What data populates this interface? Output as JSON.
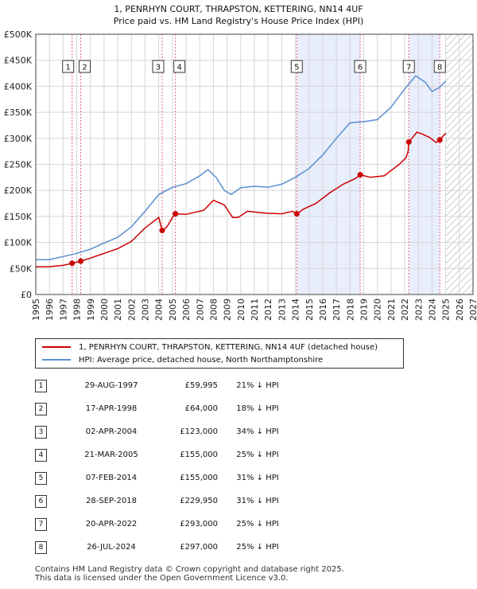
{
  "title_line1": "1, PENRHYN COURT, THRAPSTON, KETTERING, NN14 4UF",
  "title_line2": "Price paid vs. HM Land Registry's House Price Index (HPI)",
  "legend": {
    "property": "1, PENRHYN COURT, THRAPSTON, KETTERING, NN14 4UF (detached house)",
    "hpi": "HPI: Average price, detached house, North Northamptonshire"
  },
  "colors": {
    "property": "#cc0000",
    "hpi": "#5a8fd0",
    "shade": "#e8eefb",
    "grid": "#d5d5d5"
  },
  "sales": [
    {
      "num": "1",
      "date": "29-AUG-1997",
      "price": "£59,995",
      "delta": "21% ↓ HPI"
    },
    {
      "num": "2",
      "date": "17-APR-1998",
      "price": "£64,000",
      "delta": "18% ↓ HPI"
    },
    {
      "num": "3",
      "date": "02-APR-2004",
      "price": "£123,000",
      "delta": "34% ↓ HPI"
    },
    {
      "num": "4",
      "date": "21-MAR-2005",
      "price": "£155,000",
      "delta": "25% ↓ HPI"
    },
    {
      "num": "5",
      "date": "07-FEB-2014",
      "price": "£155,000",
      "delta": "31% ↓ HPI"
    },
    {
      "num": "6",
      "date": "28-SEP-2018",
      "price": "£229,950",
      "delta": "31% ↓ HPI"
    },
    {
      "num": "7",
      "date": "20-APR-2022",
      "price": "£293,000",
      "delta": "25% ↓ HPI"
    },
    {
      "num": "8",
      "date": "26-JUL-2024",
      "price": "£297,000",
      "delta": "25% ↓ HPI"
    }
  ],
  "footer_line1": "Contains HM Land Registry data © Crown copyright and database right 2025.",
  "footer_line2": "This data is licensed under the Open Government Licence v3.0.",
  "chart_data": {
    "type": "line",
    "xlim": [
      1995,
      2027
    ],
    "ylim": [
      0,
      500000
    ],
    "xticks": [
      1995,
      1996,
      1997,
      1998,
      1999,
      2000,
      2001,
      2002,
      2003,
      2004,
      2005,
      2006,
      2007,
      2008,
      2009,
      2010,
      2011,
      2012,
      2013,
      2014,
      2015,
      2016,
      2017,
      2018,
      2019,
      2020,
      2021,
      2022,
      2023,
      2024,
      2025,
      2026,
      2027
    ],
    "yticks": [
      {
        "v": 0,
        "label": "£0"
      },
      {
        "v": 50000,
        "label": "£50K"
      },
      {
        "v": 100000,
        "label": "£100K"
      },
      {
        "v": 150000,
        "label": "£150K"
      },
      {
        "v": 200000,
        "label": "£200K"
      },
      {
        "v": 250000,
        "label": "£250K"
      },
      {
        "v": 300000,
        "label": "£300K"
      },
      {
        "v": 350000,
        "label": "£350K"
      },
      {
        "v": 400000,
        "label": "£400K"
      },
      {
        "v": 450000,
        "label": "£450K"
      },
      {
        "v": 500000,
        "label": "£500K"
      }
    ],
    "shaded_periods": [
      [
        2014.1,
        2018.74
      ],
      [
        2022.3,
        2024.57
      ]
    ],
    "hatched_from": 2025.0,
    "markers": [
      {
        "label": "1",
        "x": 1997.66,
        "y": 59995
      },
      {
        "label": "2",
        "x": 1998.29,
        "y": 64000
      },
      {
        "label": "3",
        "x": 2004.25,
        "y": 123000
      },
      {
        "label": "4",
        "x": 2005.22,
        "y": 155000
      },
      {
        "label": "5",
        "x": 2014.1,
        "y": 155000
      },
      {
        "label": "6",
        "x": 2018.74,
        "y": 229950
      },
      {
        "label": "7",
        "x": 2022.3,
        "y": 293000
      },
      {
        "label": "8",
        "x": 2024.57,
        "y": 297000
      }
    ],
    "series": [
      {
        "name": "1, PENRHYN COURT, THRAPSTON, KETTERING, NN14 4UF (detached house)",
        "color": "#cc0000",
        "points": [
          [
            1995,
            53000
          ],
          [
            1996,
            53500
          ],
          [
            1997,
            56000
          ],
          [
            1997.66,
            59995
          ],
          [
            1998.29,
            64000
          ],
          [
            1999,
            70000
          ],
          [
            2000,
            79000
          ],
          [
            2001,
            88000
          ],
          [
            2002,
            102000
          ],
          [
            2003,
            128000
          ],
          [
            2004.0,
            148000
          ],
          [
            2004.25,
            123000
          ],
          [
            2004.6,
            130000
          ],
          [
            2005.0,
            148000
          ],
          [
            2005.22,
            155000
          ],
          [
            2006,
            154000
          ],
          [
            2006.5,
            157000
          ],
          [
            2007.3,
            162000
          ],
          [
            2008,
            181000
          ],
          [
            2008.8,
            172000
          ],
          [
            2009.4,
            148000
          ],
          [
            2009.8,
            148000
          ],
          [
            2010.5,
            160000
          ],
          [
            2011.2,
            158000
          ],
          [
            2012,
            156000
          ],
          [
            2013,
            155000
          ],
          [
            2013.8,
            160000
          ],
          [
            2014.1,
            155000
          ],
          [
            2014.6,
            164000
          ],
          [
            2015.5,
            175000
          ],
          [
            2016.5,
            195000
          ],
          [
            2017.5,
            212000
          ],
          [
            2018.4,
            223000
          ],
          [
            2018.74,
            229950
          ],
          [
            2019.5,
            225000
          ],
          [
            2020.5,
            228000
          ],
          [
            2021,
            238000
          ],
          [
            2021.6,
            250000
          ],
          [
            2022.1,
            263000
          ],
          [
            2022.25,
            275000
          ],
          [
            2022.3,
            293000
          ],
          [
            2022.9,
            312000
          ],
          [
            2023.3,
            308000
          ],
          [
            2023.8,
            302000
          ],
          [
            2024.3,
            292000
          ],
          [
            2024.57,
            297000
          ],
          [
            2025.0,
            310000
          ]
        ]
      },
      {
        "name": "HPI: Average price, detached house, North Northamptonshire",
        "color": "#5a8fd0",
        "points": [
          [
            1995,
            67000
          ],
          [
            1996,
            67000
          ],
          [
            1997,
            73000
          ],
          [
            1998,
            79000
          ],
          [
            1999,
            87000
          ],
          [
            2000,
            99000
          ],
          [
            2001,
            110000
          ],
          [
            2002,
            130000
          ],
          [
            2003,
            160000
          ],
          [
            2004,
            192000
          ],
          [
            2005,
            206000
          ],
          [
            2006,
            213000
          ],
          [
            2007,
            228000
          ],
          [
            2007.6,
            240000
          ],
          [
            2008.2,
            225000
          ],
          [
            2008.8,
            200000
          ],
          [
            2009.3,
            192000
          ],
          [
            2010,
            205000
          ],
          [
            2011,
            208000
          ],
          [
            2012,
            206000
          ],
          [
            2013,
            212000
          ],
          [
            2014,
            225000
          ],
          [
            2015,
            242000
          ],
          [
            2016,
            268000
          ],
          [
            2017,
            300000
          ],
          [
            2018,
            330000
          ],
          [
            2019,
            332000
          ],
          [
            2020,
            336000
          ],
          [
            2021,
            360000
          ],
          [
            2022,
            395000
          ],
          [
            2022.8,
            420000
          ],
          [
            2023.5,
            408000
          ],
          [
            2024,
            390000
          ],
          [
            2024.57,
            398000
          ],
          [
            2025.0,
            410000
          ]
        ]
      }
    ]
  }
}
